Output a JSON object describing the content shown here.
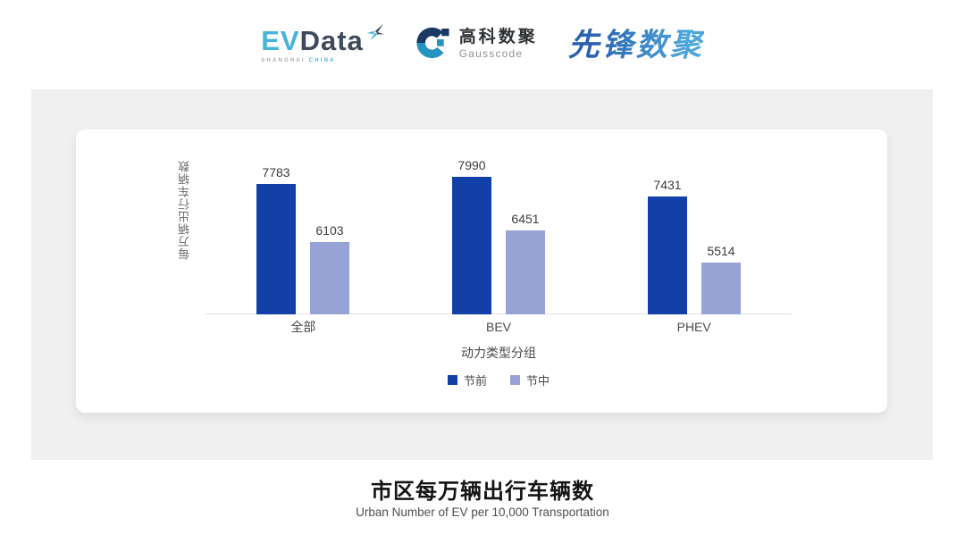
{
  "header": {
    "evdata_logo": {
      "ev": "EV",
      "data": "Data",
      "x_icon": "pinwheel-x-icon",
      "subtext_shanghai": "SHANGHAI",
      "subtext_china": "CHINA",
      "ev_color": "#45B5D9",
      "data_color": "#3D4A5A"
    },
    "gausscode_logo": {
      "icon": "gausscode-g-icon",
      "cn": "高科数聚",
      "en": "Gausscode",
      "navy": "#1B3A63",
      "teal": "#2593C1"
    },
    "pioneer_logo": {
      "text": "先锋数聚",
      "color_start": "#2A62B0",
      "color_end": "#4BA6DC"
    }
  },
  "chart_data": {
    "type": "bar",
    "title": "市区每万辆出行车辆数",
    "subtitle": "Urban Number of EV per 10,000 Transportation",
    "xlabel": "动力类型分组",
    "ylabel": "每万辆出行车辆数",
    "categories": [
      "全部",
      "BEV",
      "PHEV"
    ],
    "series": [
      {
        "name": "节前",
        "color": "#1240A8",
        "values": [
          7783,
          7990,
          7431
        ]
      },
      {
        "name": "节中",
        "color": "#97A2D5",
        "values": [
          6103,
          6451,
          5514
        ]
      }
    ],
    "ylim": [
      4000,
      8000
    ],
    "grid": false,
    "legend_position": "bottom",
    "value_labels": true,
    "axis_line_color": "#E3E3E4",
    "background": "#F0F0F1"
  }
}
